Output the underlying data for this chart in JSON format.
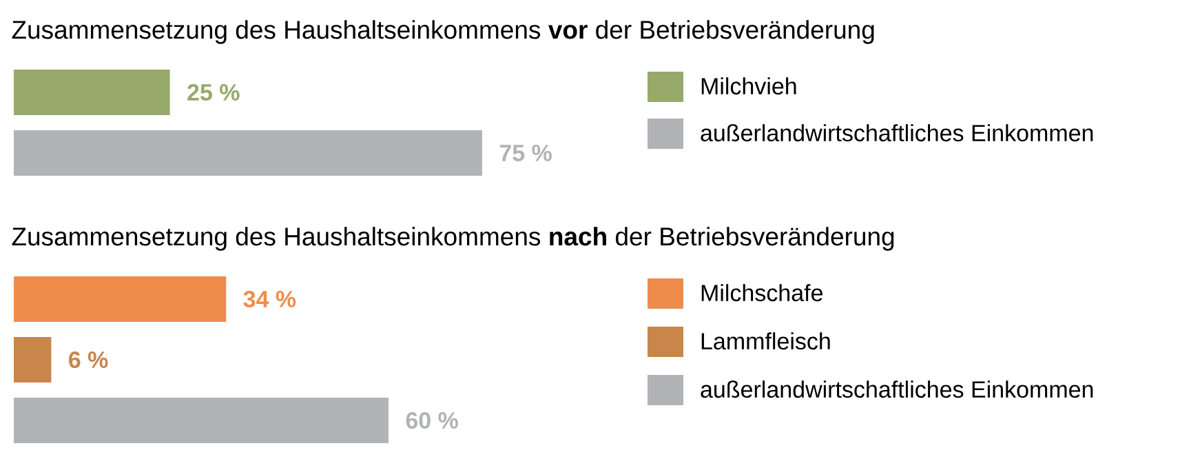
{
  "chart_data": [
    {
      "type": "bar",
      "orientation": "horizontal",
      "title": "Zusammensetzung des Haushaltseinkommens **vor** der Betriebsveränderung",
      "legend": "right",
      "categories": [
        null
      ],
      "series": [
        {
          "name": "Milchvieh",
          "color": "#97a96b",
          "values": [
            25
          ],
          "value_labels": [
            "25 %"
          ]
        },
        {
          "name": "außerlandwirtschaftliches Einkommen",
          "color": "#b1b3b6",
          "values": [
            75
          ],
          "value_labels": [
            "75 %"
          ]
        }
      ]
    },
    {
      "type": "bar",
      "orientation": "horizontal",
      "title": "Zusammensetzung des Haushaltseinkommens **nach** der Betriebsveränderung",
      "legend": "right",
      "categories": [
        null
      ],
      "series": [
        {
          "name": "Milchschafe",
          "color": "#ef8c4c",
          "values": [
            34
          ],
          "value_labels": [
            "34 %"
          ]
        },
        {
          "name": "Lammfleisch",
          "color": "#c8864a",
          "values": [
            6
          ],
          "value_labels": [
            "6 %"
          ]
        },
        {
          "name": "außerlandwirtschaftliches Einkommen",
          "color": "#b1b3b6",
          "values": [
            60
          ],
          "value_labels": [
            "60 %"
          ]
        }
      ]
    }
  ]
}
